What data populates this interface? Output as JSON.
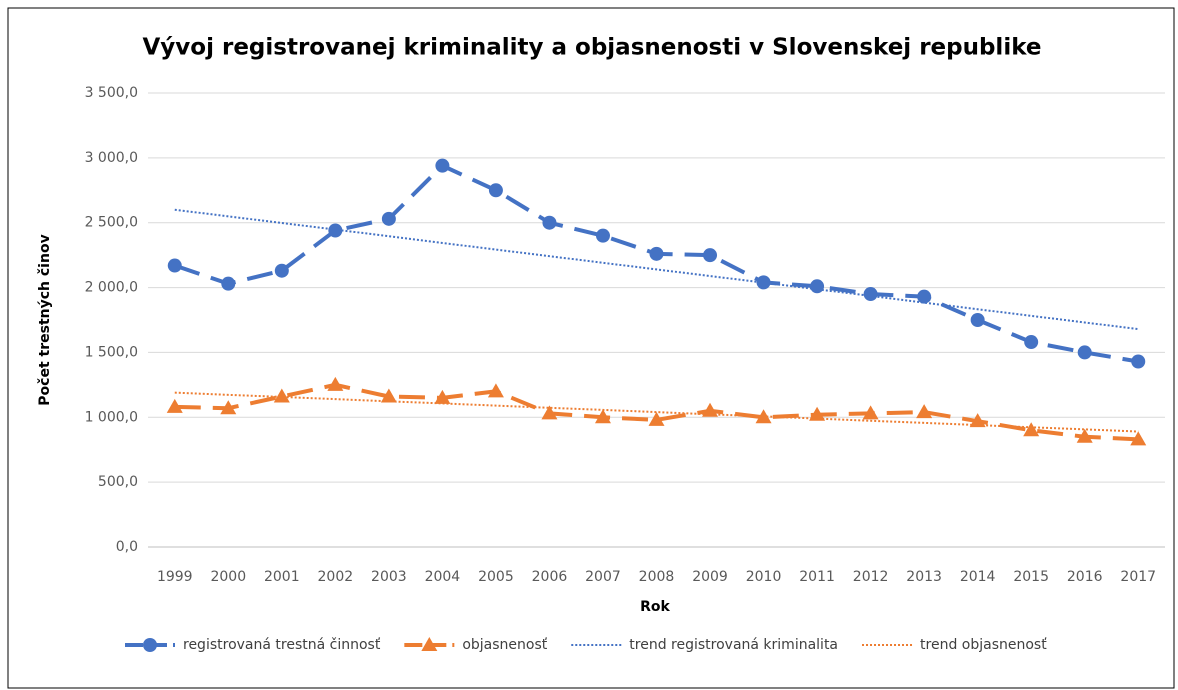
{
  "chart_data": {
    "type": "line",
    "title": "Vývoj registrovanej kriminality a objasnenosti v Slovenskej republike",
    "x_label": "Rok",
    "y_label": "Počet trestných činov",
    "categories": [
      "1999",
      "2000",
      "2001",
      "2002",
      "2003",
      "2004",
      "2005",
      "2006",
      "2007",
      "2008",
      "2009",
      "2010",
      "2011",
      "2012",
      "2013",
      "2014",
      "2015",
      "2016",
      "2017"
    ],
    "series": [
      {
        "name": "registrovaná trestná činnosť",
        "color": "#4472c4",
        "dash": "long",
        "marker": "circle",
        "values": [
          2170,
          2030,
          2130,
          2440,
          2530,
          2940,
          2750,
          2500,
          2400,
          2260,
          2250,
          2040,
          2010,
          1950,
          1930,
          1750,
          1580,
          1500,
          1430
        ]
      },
      {
        "name": "objasnenosť",
        "color": "#ed7d31",
        "dash": "long",
        "marker": "triangle",
        "values": [
          1080,
          1070,
          1160,
          1250,
          1160,
          1150,
          1200,
          1030,
          1000,
          980,
          1050,
          1000,
          1020,
          1030,
          1040,
          970,
          900,
          850,
          830
        ]
      },
      {
        "name": "trend registrovaná kriminalita",
        "color": "#4472c4",
        "dash": "dotted",
        "marker": "none",
        "values": [
          2600,
          2549,
          2498,
          2447,
          2396,
          2344,
          2293,
          2242,
          2191,
          2140,
          2089,
          2038,
          1987,
          1936,
          1884,
          1833,
          1782,
          1731,
          1680
        ]
      },
      {
        "name": "trend objasnenosť",
        "color": "#ed7d31",
        "dash": "dotted",
        "marker": "none",
        "values": [
          1190,
          1173,
          1157,
          1140,
          1123,
          1107,
          1090,
          1073,
          1057,
          1040,
          1023,
          1007,
          990,
          973,
          957,
          940,
          923,
          907,
          890
        ]
      }
    ],
    "ylim": [
      0,
      3500
    ],
    "yticks": [
      {
        "value": 0,
        "label": "0,0"
      },
      {
        "value": 500,
        "label": "500,0"
      },
      {
        "value": 1000,
        "label": "1 000,0"
      },
      {
        "value": 1500,
        "label": "1 500,0"
      },
      {
        "value": 2000,
        "label": "2 000,0"
      },
      {
        "value": 2500,
        "label": "2 500,0"
      },
      {
        "value": 3000,
        "label": "3 000,0"
      },
      {
        "value": 3500,
        "label": "3 500,0"
      }
    ],
    "grid": true,
    "legend": "bottom"
  }
}
